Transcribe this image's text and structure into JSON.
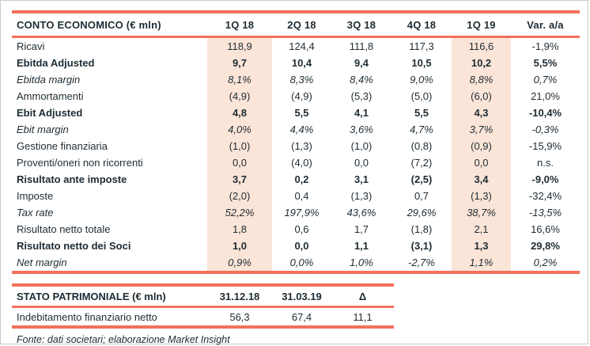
{
  "colors": {
    "accent": "#F2705B",
    "highlight": "#FBE5D8",
    "text": "#1E2B33",
    "frame_border": "#CBCBCB"
  },
  "income_statement": {
    "title": "CONTO ECONOMICO (€ mln)",
    "columns": [
      "1Q 18",
      "2Q 18",
      "3Q 18",
      "4Q 18",
      "1Q 19",
      "Var. a/a"
    ],
    "highlight_columns": [
      0,
      4
    ],
    "rows": [
      {
        "label": "Ricavi",
        "style": "normal",
        "values": [
          "118,9",
          "124,4",
          "111,8",
          "117,3",
          "116,6",
          "-1,9%"
        ]
      },
      {
        "label": "Ebitda Adjusted",
        "style": "bold",
        "values": [
          "9,7",
          "10,4",
          "9,4",
          "10,5",
          "10,2",
          "5,5%"
        ]
      },
      {
        "label": "Ebitda margin",
        "style": "italic",
        "values": [
          "8,1%",
          "8,3%",
          "8,4%",
          "9,0%",
          "8,8%",
          "0,7%"
        ]
      },
      {
        "label": "Ammortamenti",
        "style": "normal",
        "values": [
          "(4,9)",
          "(4,9)",
          "(5,3)",
          "(5,0)",
          "(6,0)",
          "21,0%"
        ]
      },
      {
        "label": "Ebit Adjusted",
        "style": "bold",
        "values": [
          "4,8",
          "5,5",
          "4,1",
          "5,5",
          "4,3",
          "-10,4%"
        ]
      },
      {
        "label": "Ebit margin",
        "style": "italic",
        "values": [
          "4,0%",
          "4,4%",
          "3,6%",
          "4,7%",
          "3,7%",
          "-0,3%"
        ]
      },
      {
        "label": "Gestione finanziaria",
        "style": "normal",
        "values": [
          "(1,0)",
          "(1,3)",
          "(1,0)",
          "(0,8)",
          "(0,9)",
          "-15,9%"
        ]
      },
      {
        "label": "Proventi/oneri non ricorrenti",
        "style": "normal",
        "values": [
          "0,0",
          "(4,0)",
          "0,0",
          "(7,2)",
          "0,0",
          "n.s."
        ]
      },
      {
        "label": "Risultato ante imposte",
        "style": "bold",
        "values": [
          "3,7",
          "0,2",
          "3,1",
          "(2,5)",
          "3,4",
          "-9,0%"
        ]
      },
      {
        "label": "Imposte",
        "style": "normal",
        "values": [
          "(2,0)",
          "0,4",
          "(1,3)",
          "0,7",
          "(1,3)",
          "-32,4%"
        ]
      },
      {
        "label": "Tax rate",
        "style": "italic",
        "values": [
          "52,2%",
          "197,9%",
          "43,6%",
          "29,6%",
          "38,7%",
          "-13,5%"
        ]
      },
      {
        "label": "Risultato netto totale",
        "style": "normal",
        "values": [
          "1,8",
          "0,6",
          "1,7",
          "(1,8)",
          "2,1",
          "16,6%"
        ]
      },
      {
        "label": "Risultato netto dei Soci",
        "style": "bold",
        "values": [
          "1,0",
          "0,0",
          "1,1",
          "(3,1)",
          "1,3",
          "29,8%"
        ]
      },
      {
        "label": "Net margin",
        "style": "italic",
        "values": [
          "0,9%",
          "0,0%",
          "1,0%",
          "-2,7%",
          "1,1%",
          "0,2%"
        ]
      }
    ]
  },
  "balance_sheet": {
    "title": "STATO PATRIMONIALE (€ mln)",
    "columns": [
      "31.12.18",
      "31.03.19",
      "Δ"
    ],
    "rows": [
      {
        "label": "Indebitamento finanziario netto",
        "values": [
          "56,3",
          "67,4",
          "11,1"
        ]
      }
    ]
  },
  "footnote": "Fonte: dati societari; elaborazione Market Insight"
}
